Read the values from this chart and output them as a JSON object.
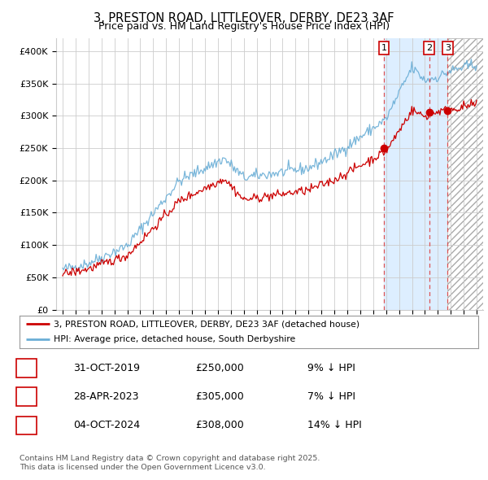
{
  "title1": "3, PRESTON ROAD, LITTLEOVER, DERBY, DE23 3AF",
  "title2": "Price paid vs. HM Land Registry's House Price Index (HPI)",
  "ylabel_ticks": [
    "£0",
    "£50K",
    "£100K",
    "£150K",
    "£200K",
    "£250K",
    "£300K",
    "£350K",
    "£400K"
  ],
  "ytick_values": [
    0,
    50000,
    100000,
    150000,
    200000,
    250000,
    300000,
    350000,
    400000
  ],
  "ylim": [
    0,
    420000
  ],
  "xlim_start": 1994.5,
  "xlim_end": 2027.5,
  "hpi_color": "#6aaed6",
  "price_color": "#cc0000",
  "dashed_line_color": "#dd4444",
  "marker_box_color": "#cc0000",
  "sale1_date": 2019.83,
  "sale1_price": 250000,
  "sale1_label": "1",
  "sale2_date": 2023.33,
  "sale2_price": 305000,
  "sale2_label": "2",
  "sale3_date": 2024.75,
  "sale3_price": 308000,
  "sale3_label": "3",
  "legend_line1": "3, PRESTON ROAD, LITTLEOVER, DERBY, DE23 3AF (detached house)",
  "legend_line2": "HPI: Average price, detached house, South Derbyshire",
  "table_row1": [
    "1",
    "31-OCT-2019",
    "£250,000",
    "9% ↓ HPI"
  ],
  "table_row2": [
    "2",
    "28-APR-2023",
    "£305,000",
    "7% ↓ HPI"
  ],
  "table_row3": [
    "3",
    "04-OCT-2024",
    "£308,000",
    "14% ↓ HPI"
  ],
  "footer": "Contains HM Land Registry data © Crown copyright and database right 2025.\nThis data is licensed under the Open Government Licence v3.0.",
  "bg_color": "#ffffff",
  "grid_color": "#cccccc",
  "shade_color": "#ddeeff",
  "hatch_color": "#bbbbbb"
}
